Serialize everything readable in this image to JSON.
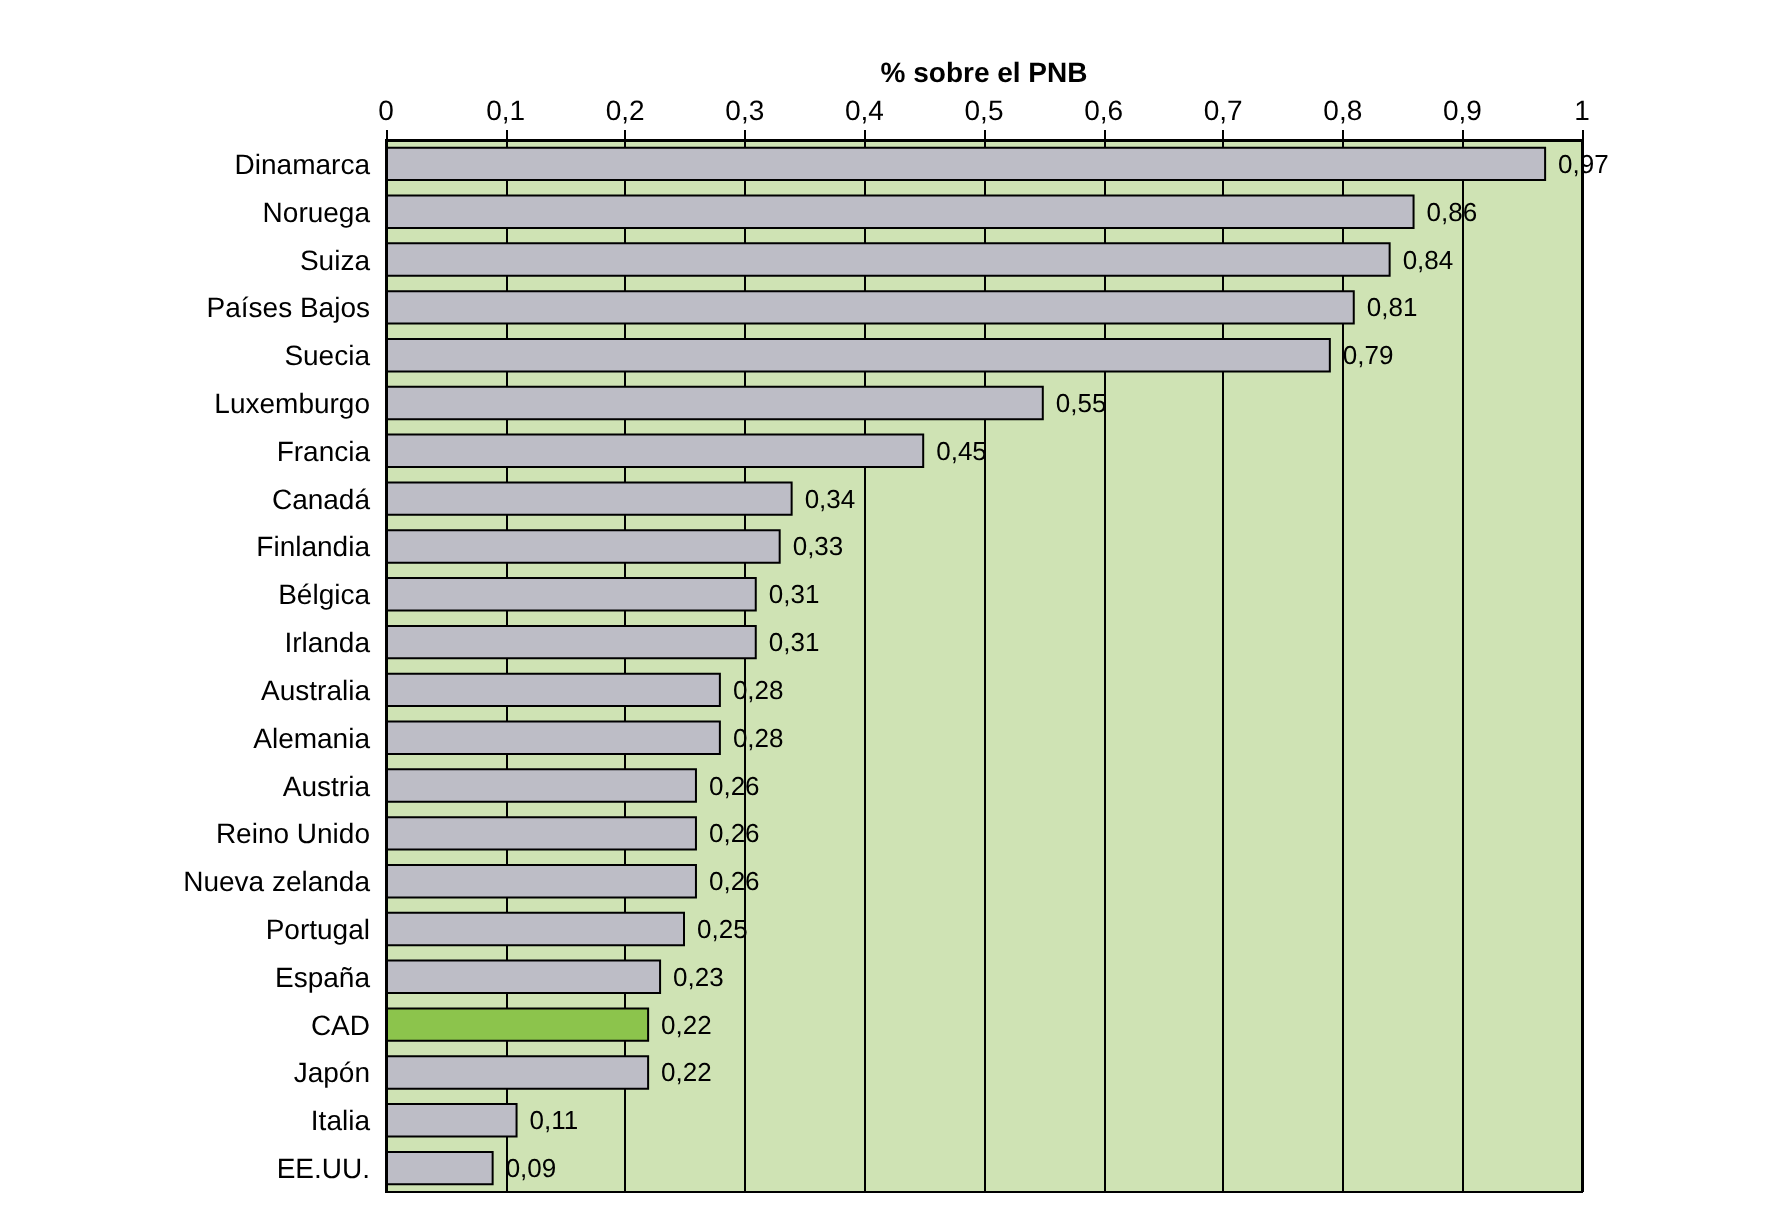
{
  "chart_data": {
    "type": "bar",
    "orientation": "horizontal",
    "xlabel": "% sobre el PNB",
    "categories": [
      "Dinamarca",
      "Noruega",
      "Suiza",
      "Países Bajos",
      "Suecia",
      "Luxemburgo",
      "Francia",
      "Canadá",
      "Finlandia",
      "Bélgica",
      "Irlanda",
      "Australia",
      "Alemania",
      "Austria",
      "Reino Unido",
      "Nueva zelanda",
      "Portugal",
      "España",
      "CAD",
      "Japón",
      "Italia",
      "EE.UU."
    ],
    "values": [
      0.97,
      0.86,
      0.84,
      0.81,
      0.79,
      0.55,
      0.45,
      0.34,
      0.33,
      0.31,
      0.31,
      0.28,
      0.28,
      0.26,
      0.26,
      0.26,
      0.25,
      0.23,
      0.22,
      0.22,
      0.11,
      0.09
    ],
    "value_labels": [
      "0,97",
      "0,86",
      "0,84",
      "0,81",
      "0,79",
      "0,55",
      "0,45",
      "0,34",
      "0,33",
      "0,31",
      "0,31",
      "0,28",
      "0,28",
      "0,26",
      "0,26",
      "0,26",
      "0,25",
      "0,23",
      "0,22",
      "0,22",
      "0,11",
      "0,09"
    ],
    "colors": [
      "#bdbdc6",
      "#bdbdc6",
      "#bdbdc6",
      "#bdbdc6",
      "#bdbdc6",
      "#bdbdc6",
      "#bdbdc6",
      "#bdbdc6",
      "#bdbdc6",
      "#bdbdc6",
      "#bdbdc6",
      "#bdbdc6",
      "#bdbdc6",
      "#bdbdc6",
      "#bdbdc6",
      "#bdbdc6",
      "#bdbdc6",
      "#bdbdc6",
      "#8cc44c",
      "#bdbdc6",
      "#bdbdc6",
      "#bdbdc6"
    ],
    "xlim": [
      0,
      1
    ],
    "xticks": [
      0,
      {
        "value": 0.1,
        "label": "0,1"
      },
      {
        "value": 0.2,
        "label": "0,2"
      },
      {
        "value": 0.3,
        "label": "0,3"
      },
      {
        "value": 0.4,
        "label": "0,4"
      },
      {
        "value": 0.5,
        "label": "0,5"
      },
      {
        "value": 0.6,
        "label": "0,6"
      },
      {
        "value": 0.7,
        "label": "0,7"
      },
      {
        "value": 0.8,
        "label": "0,8"
      },
      {
        "value": 0.9,
        "label": "0,9"
      },
      1
    ],
    "grid": "x"
  }
}
